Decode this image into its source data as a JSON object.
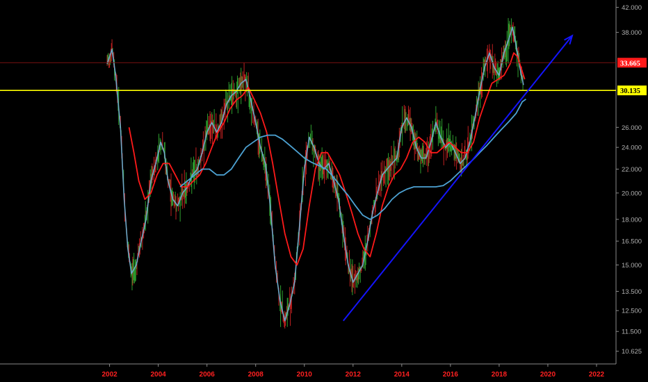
{
  "chart_data": {
    "type": "line",
    "title": "",
    "xlabel": "",
    "ylabel": "",
    "y_scale": "log",
    "xlim": [
      1997.5,
      2022.8
    ],
    "ylim": [
      10.1,
      42.3
    ],
    "grid": false,
    "x_ticks": [
      "2002",
      "2004",
      "2006",
      "2008",
      "2010",
      "2012",
      "2014",
      "2016",
      "2018",
      "2020",
      "2022"
    ],
    "y_ticks": [
      "42.000",
      "38.000",
      "26.000",
      "24.000",
      "22.000",
      "20.000",
      "18.000",
      "16.500",
      "15.000",
      "13.500",
      "12.500",
      "11.500",
      "10.625"
    ],
    "series": [
      {
        "role": "price",
        "color": "#6fa8c8",
        "x": [
          2001.9,
          2002.1,
          2002.25,
          2002.45,
          2002.6,
          2002.75,
          2002.9,
          2003.1,
          2003.3,
          2003.5,
          2003.7,
          2003.9,
          2004.1,
          2004.25,
          2004.4,
          2004.6,
          2004.8,
          2005.0,
          2005.2,
          2005.4,
          2005.6,
          2005.8,
          2006.0,
          2006.2,
          2006.4,
          2006.6,
          2006.8,
          2007.0,
          2007.2,
          2007.4,
          2007.6,
          2007.8,
          2008.0,
          2008.2,
          2008.4,
          2008.6,
          2008.8,
          2009.0,
          2009.2,
          2009.4,
          2009.6,
          2009.8,
          2010.0,
          2010.2,
          2010.4,
          2010.6,
          2010.8,
          2011.0,
          2011.2,
          2011.4,
          2011.6,
          2011.8,
          2012.0,
          2012.2,
          2012.4,
          2012.6,
          2012.8,
          2013.0,
          2013.2,
          2013.4,
          2013.6,
          2013.8,
          2014.0,
          2014.2,
          2014.4,
          2014.6,
          2014.8,
          2015.0,
          2015.2,
          2015.4,
          2015.6,
          2015.8,
          2016.0,
          2016.2,
          2016.4,
          2016.6,
          2016.8,
          2017.0,
          2017.2,
          2017.4,
          2017.6,
          2017.8,
          2018.0,
          2018.2,
          2018.4,
          2018.55,
          2018.7,
          2018.85,
          2019.0
        ],
        "values": [
          33.5,
          35.5,
          32.0,
          26.0,
          19.5,
          16.0,
          14.5,
          15.0,
          16.5,
          18.0,
          21.0,
          22.5,
          24.5,
          23.5,
          21.0,
          19.5,
          19.0,
          20.0,
          20.5,
          21.5,
          22.0,
          23.5,
          25.5,
          26.5,
          25.5,
          26.5,
          28.5,
          29.5,
          30.0,
          31.0,
          31.5,
          29.0,
          26.5,
          24.0,
          22.5,
          19.0,
          15.0,
          13.0,
          12.0,
          12.8,
          14.0,
          17.5,
          22.0,
          25.0,
          24.0,
          22.5,
          22.0,
          22.5,
          21.0,
          19.5,
          17.0,
          15.0,
          14.0,
          14.5,
          15.0,
          16.5,
          18.5,
          20.0,
          21.5,
          22.0,
          22.5,
          23.0,
          26.0,
          27.0,
          26.0,
          24.0,
          23.0,
          23.0,
          24.5,
          26.5,
          25.0,
          24.0,
          24.5,
          23.5,
          22.5,
          23.0,
          24.5,
          27.0,
          30.0,
          33.0,
          35.0,
          33.0,
          32.0,
          35.0,
          37.0,
          38.8,
          36.0,
          33.0,
          30.8
        ]
      },
      {
        "role": "moving-average-fast",
        "color": "#ff1a1a",
        "x": [
          2002.8,
          2003.0,
          2003.2,
          2003.45,
          2003.7,
          2003.95,
          2004.2,
          2004.45,
          2004.7,
          2004.95,
          2005.2,
          2005.45,
          2005.7,
          2005.95,
          2006.2,
          2006.45,
          2006.7,
          2006.95,
          2007.2,
          2007.45,
          2007.7,
          2007.95,
          2008.2,
          2008.45,
          2008.7,
          2008.95,
          2009.2,
          2009.45,
          2009.7,
          2009.95,
          2010.2,
          2010.45,
          2010.7,
          2010.95,
          2011.2,
          2011.45,
          2011.7,
          2011.95,
          2012.2,
          2012.45,
          2012.7,
          2012.95,
          2013.2,
          2013.45,
          2013.7,
          2013.95,
          2014.2,
          2014.45,
          2014.7,
          2014.95,
          2015.2,
          2015.45,
          2015.7,
          2015.95,
          2016.2,
          2016.45,
          2016.7,
          2016.95,
          2017.2,
          2017.45,
          2017.7,
          2017.95,
          2018.2,
          2018.45,
          2018.6,
          2018.75,
          2018.9,
          2019.05
        ],
        "values": [
          26.0,
          23.5,
          21.0,
          19.5,
          20.0,
          21.5,
          22.5,
          22.5,
          21.5,
          20.5,
          20.5,
          21.0,
          21.5,
          22.5,
          24.0,
          25.5,
          26.5,
          28.0,
          29.0,
          29.5,
          30.5,
          29.0,
          27.5,
          25.5,
          22.5,
          19.5,
          17.0,
          15.5,
          15.0,
          16.0,
          19.0,
          22.0,
          23.5,
          23.5,
          22.5,
          21.5,
          20.0,
          18.5,
          17.0,
          16.0,
          15.5,
          17.0,
          19.0,
          20.5,
          21.5,
          22.0,
          23.0,
          24.5,
          25.0,
          24.5,
          23.5,
          23.5,
          24.0,
          24.5,
          24.0,
          23.5,
          23.5,
          24.5,
          27.0,
          29.0,
          31.0,
          31.5,
          32.0,
          33.5,
          35.0,
          34.5,
          33.0,
          31.5
        ]
      },
      {
        "role": "moving-average-slow",
        "color": "#4da3d4",
        "x": [
          2004.9,
          2005.2,
          2005.5,
          2005.8,
          2006.1,
          2006.4,
          2006.7,
          2007.0,
          2007.3,
          2007.6,
          2007.9,
          2008.2,
          2008.5,
          2008.8,
          2009.1,
          2009.4,
          2009.7,
          2010.0,
          2010.3,
          2010.6,
          2010.9,
          2011.2,
          2011.5,
          2011.8,
          2012.1,
          2012.4,
          2012.7,
          2013.0,
          2013.3,
          2013.6,
          2013.9,
          2014.2,
          2014.5,
          2014.8,
          2015.1,
          2015.4,
          2015.7,
          2016.0,
          2016.3,
          2016.6,
          2016.9,
          2017.2,
          2017.5,
          2017.8,
          2018.1,
          2018.4,
          2018.7,
          2018.95,
          2019.1
        ],
        "values": [
          20.5,
          21.0,
          21.5,
          22.0,
          22.0,
          21.5,
          21.5,
          22.0,
          23.0,
          24.0,
          24.5,
          25.0,
          25.2,
          25.2,
          24.8,
          24.2,
          23.6,
          23.0,
          22.6,
          22.3,
          22.0,
          21.3,
          20.5,
          19.8,
          19.0,
          18.3,
          18.0,
          18.3,
          18.8,
          19.5,
          20.0,
          20.3,
          20.5,
          20.5,
          20.5,
          20.5,
          20.6,
          21.0,
          21.6,
          22.2,
          22.8,
          23.5,
          24.2,
          25.0,
          25.8,
          26.6,
          27.5,
          28.8,
          29.1
        ]
      }
    ],
    "trendline": {
      "x": [
        2011.6,
        2021.0
      ],
      "values": [
        12.0,
        37.5
      ],
      "color": "#1414ff"
    },
    "horizontal_lines": [
      {
        "value": 33.665,
        "label": "33.665",
        "line_color": "#7a1212",
        "box_color": "#ff1a1a",
        "text_color": "#ffffff"
      },
      {
        "value": 30.135,
        "label": "30.135",
        "line_color": "#ffff00",
        "box_color": "#ffff00",
        "text_color": "#000000"
      }
    ]
  }
}
